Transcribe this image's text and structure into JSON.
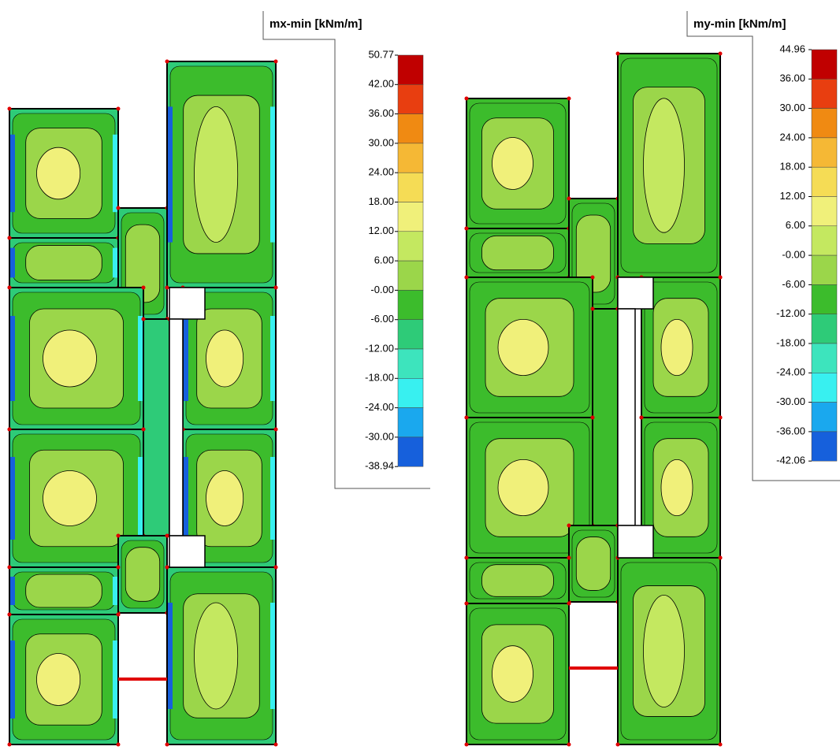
{
  "panels": [
    {
      "legend": {
        "title": "mx-min [kNm/m]",
        "labels": [
          "50.77",
          "42.00",
          "36.00",
          "30.00",
          "24.00",
          "18.00",
          "12.00",
          "6.00",
          "-0.00",
          "-6.00",
          "-12.00",
          "-18.00",
          "-24.00",
          "-30.00",
          "-38.94"
        ],
        "colors": [
          "#c00000",
          "#e83e10",
          "#f08a12",
          "#f5b835",
          "#f5dc55",
          "#f0f07a",
          "#c4e860",
          "#9bd64a",
          "#3cbc2c",
          "#2ecb78",
          "#3de4bd",
          "#38f0f0",
          "#1aa8ee",
          "#1660dc",
          "#2410c0"
        ]
      }
    },
    {
      "legend": {
        "title": "my-min [kNm/m]",
        "labels": [
          "44.96",
          "36.00",
          "30.00",
          "24.00",
          "18.00",
          "12.00",
          "6.00",
          "-0.00",
          "-6.00",
          "-12.00",
          "-18.00",
          "-24.00",
          "-30.00",
          "-36.00",
          "-42.06"
        ],
        "colors": [
          "#c00000",
          "#e83e10",
          "#f08a12",
          "#f5b835",
          "#f5dc55",
          "#f0f07a",
          "#c4e860",
          "#9bd64a",
          "#3cbc2c",
          "#2ecb78",
          "#3de4bd",
          "#38f0f0",
          "#1aa8ee",
          "#1660dc",
          "#2410c0"
        ]
      }
    }
  ]
}
